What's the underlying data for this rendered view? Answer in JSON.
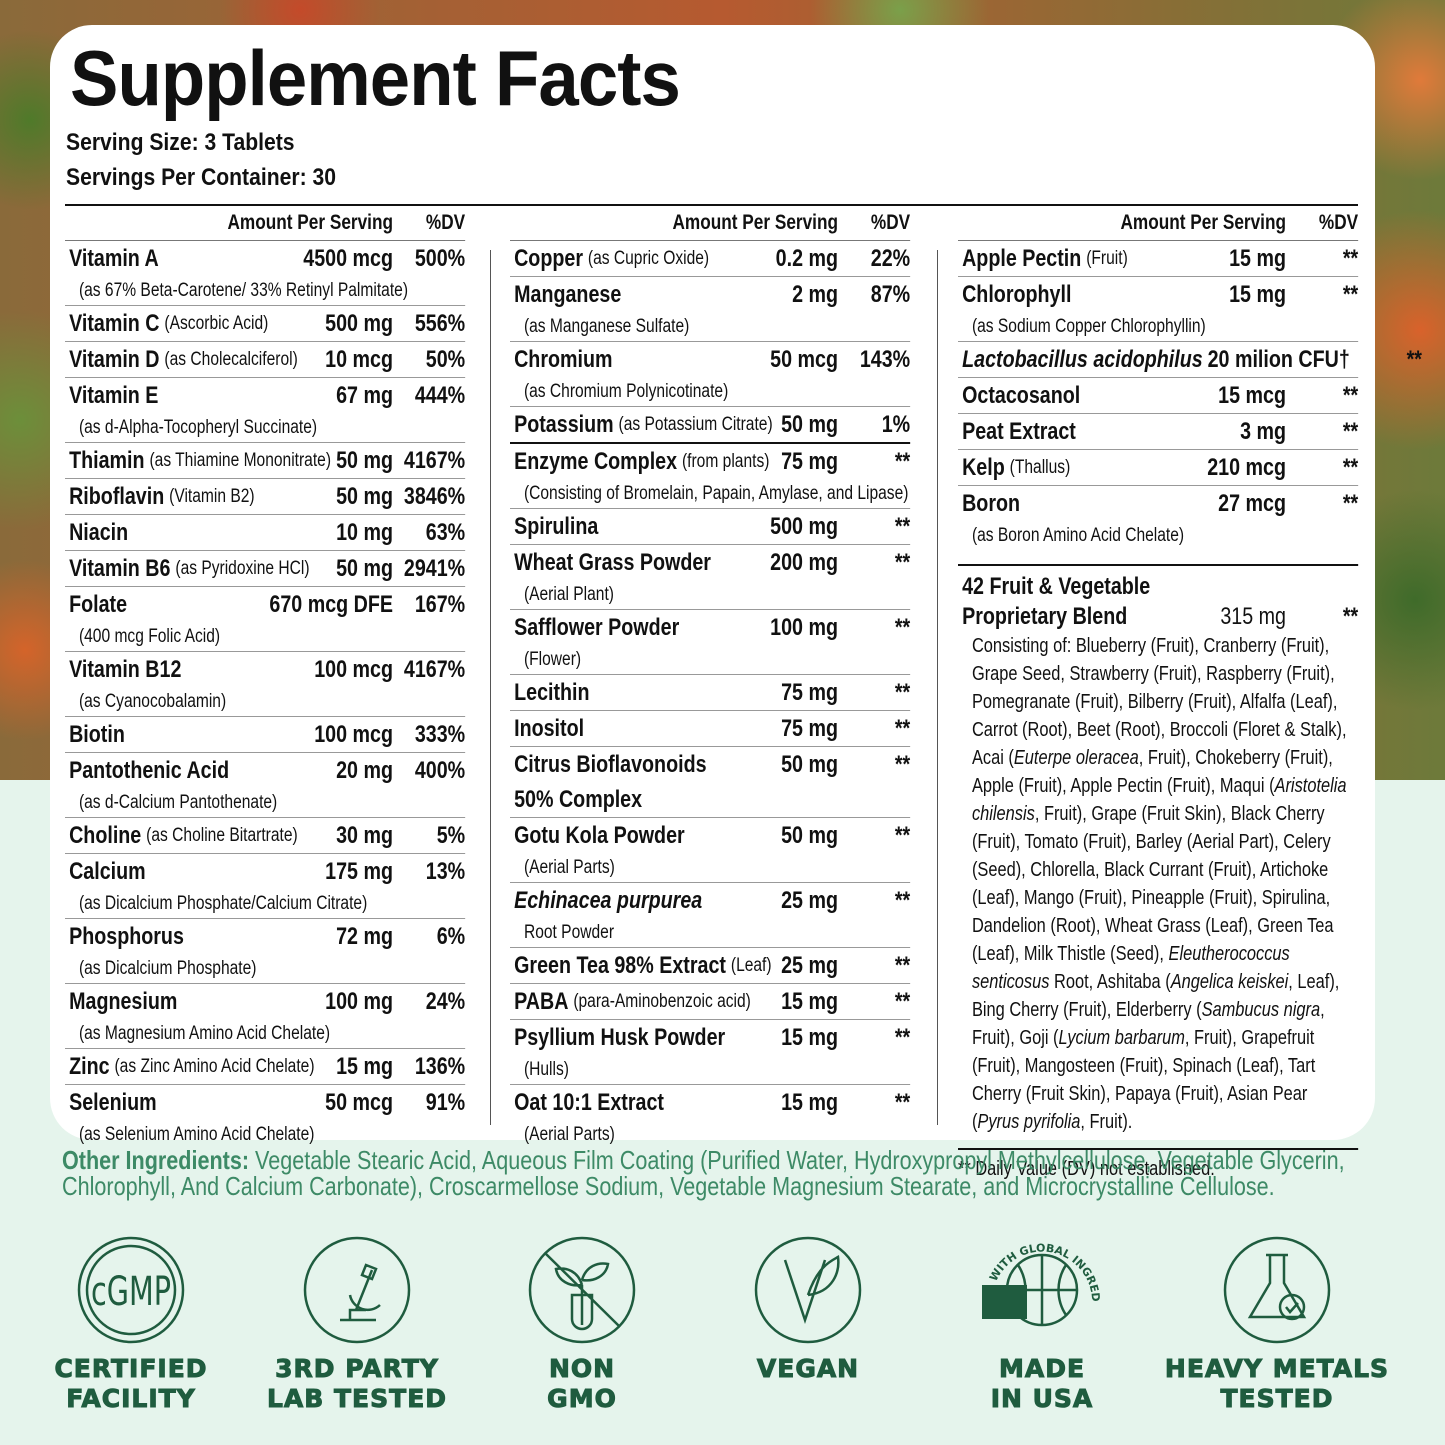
{
  "header": {
    "title": "Supplement Facts",
    "serving_size": "Serving Size: 3 Tablets",
    "servings_per_container": "Servings Per Container: 30"
  },
  "columns": [
    {
      "header_amount": "Amount Per Serving",
      "header_dv": "%DV",
      "groups": [
        [
          {
            "name": "Vitamin A",
            "amount": "4500 mcg",
            "dv": "500%",
            "sub": "(as 67% Beta-Carotene/ 33% Retinyl Palmitate)"
          },
          {
            "name": "Vitamin C",
            "qual": "(Ascorbic Acid)",
            "amount": "500 mg",
            "dv": "556%"
          },
          {
            "name": "Vitamin D",
            "qual": "(as Cholecalciferol)",
            "amount": "10 mcg",
            "dv": "50%"
          },
          {
            "name": "Vitamin E",
            "amount": "67 mg",
            "dv": "444%",
            "sub": "(as d-Alpha-Tocopheryl Succinate)"
          },
          {
            "name": "Thiamin",
            "qual": "(as Thiamine Mononitrate)",
            "amount": "50 mg",
            "dv": "4167%"
          },
          {
            "name": "Riboflavin",
            "qual": "(Vitamin B2)",
            "amount": "50 mg",
            "dv": "3846%"
          },
          {
            "name": "Niacin",
            "amount": "10 mg",
            "dv": "63%"
          },
          {
            "name": "Vitamin B6",
            "qual": "(as Pyridoxine HCl)",
            "amount": "50 mg",
            "dv": "2941%"
          },
          {
            "name": "Folate",
            "amount": "670 mcg DFE",
            "dv": "167%",
            "sub": "(400 mcg Folic Acid)"
          },
          {
            "name": "Vitamin B12",
            "amount": "100 mcg",
            "dv": "4167%",
            "sub": "(as Cyanocobalamin)"
          },
          {
            "name": "Biotin",
            "amount": "100 mcg",
            "dv": "333%"
          },
          {
            "name": "Pantothenic Acid",
            "amount": "20 mg",
            "dv": "400%",
            "sub": "(as d-Calcium Pantothenate)"
          },
          {
            "name": "Choline",
            "qual": "(as Choline Bitartrate)",
            "amount": "30 mg",
            "dv": "5%"
          },
          {
            "name": "Calcium",
            "amount": "175 mg",
            "dv": "13%",
            "sub": "(as Dicalcium Phosphate/Calcium Citrate)"
          },
          {
            "name": "Phosphorus",
            "amount": "72 mg",
            "dv": "6%",
            "sub": "(as Dicalcium Phosphate)"
          },
          {
            "name": "Magnesium",
            "amount": "100 mg",
            "dv": "24%",
            "sub": "(as Magnesium Amino Acid Chelate)"
          },
          {
            "name": "Zinc",
            "qual": "(as Zinc Amino Acid Chelate)",
            "amount": "15 mg",
            "dv": "136%"
          },
          {
            "name": "Selenium",
            "amount": "50 mcg",
            "dv": "91%",
            "sub": "(as Selenium Amino Acid Chelate)"
          }
        ]
      ]
    },
    {
      "header_amount": "Amount Per Serving",
      "header_dv": "%DV",
      "groups": [
        [
          {
            "name": "Copper",
            "qual": "(as Cupric Oxide)",
            "amount": "0.2 mg",
            "dv": "22%"
          },
          {
            "name": "Manganese",
            "amount": "2 mg",
            "dv": "87%",
            "sub": "(as Manganese Sulfate)"
          },
          {
            "name": "Chromium",
            "amount": "50 mcg",
            "dv": "143%",
            "sub": "(as Chromium Polynicotinate)"
          },
          {
            "name": "Potassium",
            "qual": "(as Potassium Citrate)",
            "amount": "50 mg",
            "dv": "1%"
          }
        ],
        [
          {
            "name": "Enzyme Complex",
            "qual": "(from plants)",
            "amount": "75 mg",
            "dv": "**",
            "sub": "(Consisting of Bromelain, Papain, Amylase, and Lipase)"
          },
          {
            "name": "Spirulina",
            "amount": "500 mg",
            "dv": "**"
          },
          {
            "name": "Wheat Grass Powder",
            "amount": "200 mg",
            "dv": "**",
            "sub": "(Aerial Plant)"
          },
          {
            "name": "Safflower Powder",
            "amount": "100 mg",
            "dv": "**",
            "sub": "(Flower)"
          },
          {
            "name": "Lecithin",
            "amount": "75 mg",
            "dv": "**"
          },
          {
            "name": "Inositol",
            "amount": "75 mg",
            "dv": "**"
          },
          {
            "name": "Citrus Bioflavonoids",
            "name_line2": "50% Complex",
            "amount": "50 mg",
            "dv": "**"
          },
          {
            "name": "Gotu Kola Powder",
            "amount": "50 mg",
            "dv": "**",
            "sub": "(Aerial Parts)"
          },
          {
            "name": "Echinacea purpurea",
            "italic": true,
            "amount": "25 mg",
            "dv": "**",
            "sub": "Root Powder"
          },
          {
            "name": "Green Tea 98% Extract",
            "qual": "(Leaf)",
            "amount": "25 mg",
            "dv": "**"
          },
          {
            "name": "PABA",
            "qual": "(para-Aminobenzoic acid)",
            "amount": "15 mg",
            "dv": "**"
          },
          {
            "name": "Psyllium Husk Powder",
            "amount": "15 mg",
            "dv": "**",
            "sub": "(Hulls)"
          },
          {
            "name": "Oat 10:1 Extract",
            "amount": "15 mg",
            "dv": "**",
            "sub": "(Aerial Parts)"
          }
        ]
      ]
    },
    {
      "header_amount": "Amount Per Serving",
      "header_dv": "%DV",
      "groups": [
        [
          {
            "name": "Apple Pectin",
            "qual": "(Fruit)",
            "amount": "15 mg",
            "dv": "**"
          },
          {
            "name": "Chlorophyll",
            "amount": "15 mg",
            "dv": "**",
            "sub": "(as Sodium Copper Chlorophyllin)"
          },
          {
            "name": "Lactobacillus acidophilus",
            "italic": true,
            "amount": "20 milion CFU†",
            "dv": "**"
          },
          {
            "name": "Octacosanol",
            "amount": "15 mcg",
            "dv": "**"
          },
          {
            "name": "Peat Extract",
            "amount": "3 mg",
            "dv": "**"
          },
          {
            "name": "Kelp",
            "qual": "(Thallus)",
            "amount": "210 mcg",
            "dv": "**"
          },
          {
            "name": "Boron",
            "amount": "27 mcg",
            "dv": "**",
            "sub": "(as Boron Amino Acid Chelate)"
          }
        ]
      ],
      "blend": {
        "name_lines": [
          "42 Fruit & Vegetable",
          "Proprietary Blend"
        ],
        "amount": "315 mg",
        "dv": "**",
        "text_parts": [
          "Consisting of: Blueberry (Fruit), Cranberry (Fruit), Grape Seed, Strawberry (Fruit), Raspberry (Fruit), Pomegranate (Fruit), Bilberry (Fruit), Alfalfa (Leaf), Carrot (Root), Beet (Root), Broccoli (Floret & Stalk), Acai (",
          "Euterpe oleracea",
          ", Fruit), Chokeberry (Fruit), Apple (Fruit), Apple Pectin (Fruit), Maqui (",
          "Aristotelia chilensis",
          ", Fruit), Grape (Fruit Skin), Black Cherry (Fruit), Tomato (Fruit), Barley (Aerial Part), Celery (Seed), Chlorella, Black Currant (Fruit), Artichoke (Leaf), Mango (Fruit), Pineapple (Fruit), Spirulina, Dandelion (Root), Wheat Grass (Leaf), Green Tea (Leaf), Milk Thistle (Seed), ",
          "Eleutherococcus senticosus",
          " Root, Ashitaba (",
          "Angelica keiskei",
          ", Leaf), Bing Cherry (Fruit), Elderberry (",
          "Sambucus nigra",
          ", Fruit), Goji (",
          "Lycium barbarum",
          ", Fruit), Grapefruit (Fruit), Mangosteen (Fruit), Spinach (Leaf), Tart Cherry (Fruit Skin), Papaya (Fruit), Asian Pear (",
          "Pyrus pyrifolia",
          ", Fruit)."
        ]
      },
      "footnote": "** Daily Value (DV) not established."
    }
  ],
  "other_ingredients": {
    "label": "Other Ingredients:",
    "text": "Vegetable Stearic Acid, Aqueous Film Coating (Purified Water, Hydroxypropyl Methylcellulose, Vegetable Glycerin, Chlorophyll, And Calcium Carbonate), Croscarmellose Sodium, Vegetable Magnesium Stearate, and Microcrystalline Cellulose."
  },
  "badges": [
    {
      "icon_text": "cGMP",
      "lines": [
        "CERTIFIED",
        "FACILITY"
      ]
    },
    {
      "lines": [
        "3RD PARTY",
        "LAB TESTED"
      ]
    },
    {
      "lines": [
        "NON",
        "GMO"
      ]
    },
    {
      "lines": [
        "VEGAN"
      ]
    },
    {
      "icon_text": "WITH GLOBAL INGREDIENTS",
      "lines": [
        "MADE",
        "IN USA"
      ]
    },
    {
      "lines": [
        "HEAVY METALS",
        "TESTED"
      ]
    }
  ]
}
